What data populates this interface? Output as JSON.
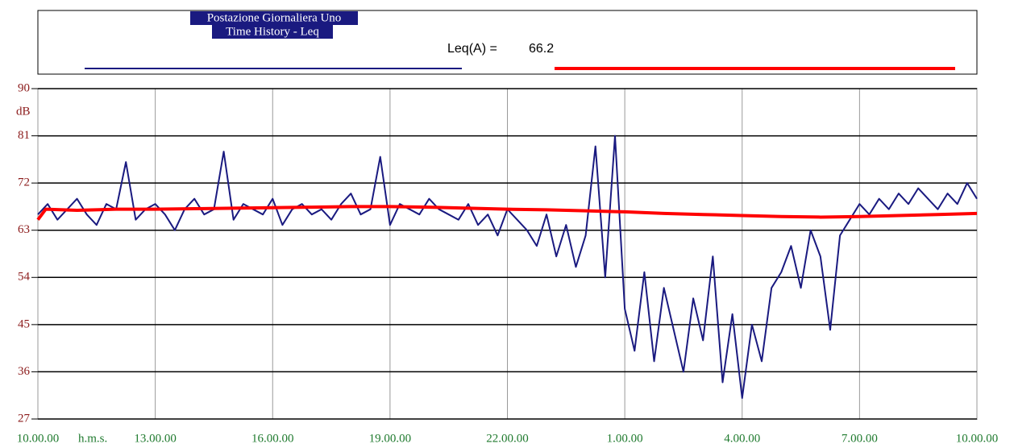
{
  "chart_data": {
    "type": "line",
    "title": "Postazione Giornaliera Uno",
    "subtitle": "Time History - Leq",
    "annotation": {
      "label": "Leq(A) =",
      "value": 66.2
    },
    "ylabel": "dB",
    "xlabel": "h.m.s.",
    "xlim": [
      0,
      24
    ],
    "xticks": [
      {
        "value": 0,
        "label": "10.00.00"
      },
      {
        "value": 3,
        "label": "13.00.00"
      },
      {
        "value": 6,
        "label": "16.00.00"
      },
      {
        "value": 9,
        "label": "19.00.00"
      },
      {
        "value": 12,
        "label": "22.00.00"
      },
      {
        "value": 15,
        "label": "1.00.00"
      },
      {
        "value": 18,
        "label": "4.00.00"
      },
      {
        "value": 21,
        "label": "7.00.00"
      },
      {
        "value": 24,
        "label": "10.00.00"
      }
    ],
    "ylim": [
      27,
      90
    ],
    "yticks": [
      27,
      36,
      45,
      54,
      63,
      72,
      81,
      90
    ],
    "grid": true,
    "series": [
      {
        "color": "#1a1a80",
        "x": [
          0,
          0.25,
          0.5,
          0.75,
          1,
          1.25,
          1.5,
          1.75,
          2,
          2.25,
          2.5,
          2.75,
          3,
          3.25,
          3.5,
          3.75,
          4,
          4.25,
          4.5,
          4.75,
          5,
          5.25,
          5.5,
          5.75,
          6,
          6.25,
          6.5,
          6.75,
          7,
          7.25,
          7.5,
          7.75,
          8,
          8.25,
          8.5,
          8.75,
          9,
          9.25,
          9.5,
          9.75,
          10,
          10.25,
          10.5,
          10.75,
          11,
          11.25,
          11.5,
          11.75,
          12,
          12.25,
          12.5,
          12.75,
          13,
          13.25,
          13.5,
          13.75,
          14,
          14.25,
          14.5,
          14.75,
          15,
          15.25,
          15.5,
          15.75,
          16,
          16.25,
          16.5,
          16.75,
          17,
          17.25,
          17.5,
          17.75,
          18,
          18.25,
          18.5,
          18.75,
          19,
          19.25,
          19.5,
          19.75,
          20,
          20.25,
          20.5,
          20.75,
          21,
          21.25,
          21.5,
          21.75,
          22,
          22.25,
          22.5,
          22.75,
          23,
          23.25,
          23.5,
          23.75,
          24
        ],
        "values": [
          66,
          68,
          65,
          67,
          69,
          66,
          64,
          68,
          67,
          76,
          65,
          67,
          68,
          66,
          63,
          67,
          69,
          66,
          67,
          78,
          65,
          68,
          67,
          66,
          69,
          64,
          67,
          68,
          66,
          67,
          65,
          68,
          70,
          66,
          67,
          77,
          64,
          68,
          67,
          66,
          69,
          67,
          66,
          65,
          68,
          64,
          66,
          62,
          67,
          65,
          63,
          60,
          66,
          58,
          64,
          56,
          62,
          79,
          54,
          81,
          48,
          40,
          55,
          38,
          52,
          44,
          36,
          50,
          42,
          58,
          34,
          47,
          31,
          45,
          38,
          52,
          55,
          60,
          52,
          63,
          58,
          44,
          62,
          65,
          68,
          66,
          69,
          67,
          70,
          68,
          71,
          69,
          67,
          70,
          68,
          72,
          69
        ]
      },
      {
        "color": "#ff0000",
        "x": [
          0,
          0.2,
          1,
          2,
          3,
          4,
          5,
          6,
          7,
          8,
          9,
          10,
          11,
          12,
          13,
          14,
          15,
          16,
          17,
          18,
          19,
          20,
          21,
          22,
          23,
          24
        ],
        "values": [
          65,
          67,
          66.8,
          67,
          67,
          67.1,
          67.2,
          67.3,
          67.4,
          67.5,
          67.5,
          67.4,
          67.2,
          67,
          66.9,
          66.7,
          66.5,
          66.2,
          66,
          65.8,
          65.6,
          65.5,
          65.6,
          65.8,
          66,
          66.2
        ]
      }
    ]
  }
}
